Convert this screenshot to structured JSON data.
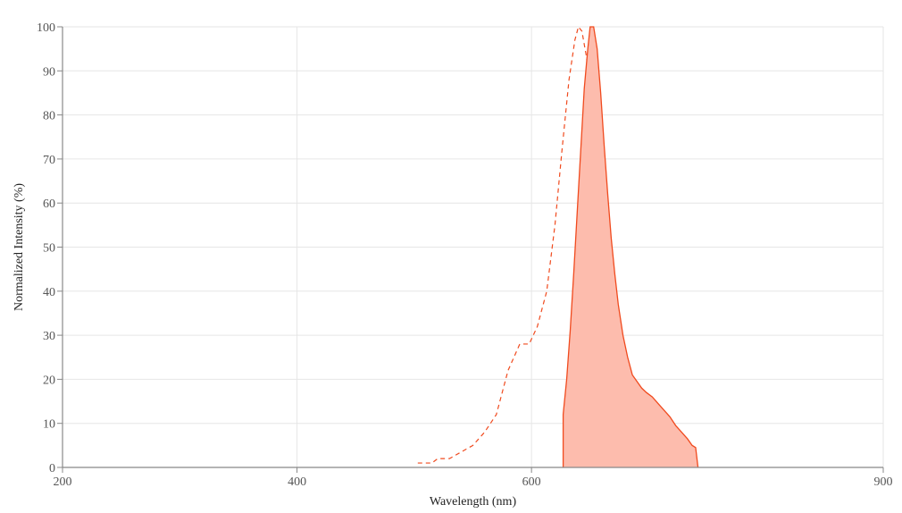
{
  "chart_data": {
    "type": "area",
    "title": "",
    "xlabel": "Wavelength (nm)",
    "ylabel": "Normalized Intensity (%)",
    "xlim": [
      200,
      900
    ],
    "ylim": [
      0,
      100
    ],
    "x_ticks": [
      200,
      400,
      600,
      900
    ],
    "y_ticks": [
      0,
      10,
      20,
      30,
      40,
      50,
      60,
      70,
      80,
      90,
      100
    ],
    "grid": true,
    "colors": {
      "line": "#f04a1e",
      "fill": "#fdbcad",
      "grid": "#e6e6e6",
      "axis": "#888888"
    },
    "series": [
      {
        "style": "dashed",
        "points": [
          [
            503,
            1
          ],
          [
            515,
            1
          ],
          [
            520,
            2
          ],
          [
            530,
            2
          ],
          [
            540,
            3.5
          ],
          [
            550,
            5
          ],
          [
            560,
            8
          ],
          [
            570,
            12
          ],
          [
            580,
            22
          ],
          [
            590,
            28
          ],
          [
            598,
            28
          ],
          [
            605,
            32
          ],
          [
            613,
            40
          ],
          [
            620,
            55
          ],
          [
            626,
            72
          ],
          [
            632,
            88
          ],
          [
            637,
            97
          ],
          [
            640,
            100
          ],
          [
            643,
            99
          ],
          [
            647,
            93
          ],
          [
            650,
            82
          ],
          [
            655,
            60
          ],
          [
            660,
            40
          ],
          [
            665,
            25
          ],
          [
            670,
            17
          ],
          [
            674,
            11
          ],
          [
            678,
            5
          ],
          [
            682,
            0
          ]
        ]
      },
      {
        "style": "solid-filled",
        "points": [
          [
            627,
            0
          ],
          [
            627,
            12
          ],
          [
            630,
            20
          ],
          [
            633,
            31
          ],
          [
            636,
            44
          ],
          [
            639,
            58
          ],
          [
            642,
            72
          ],
          [
            645,
            86
          ],
          [
            648,
            95
          ],
          [
            650,
            100
          ],
          [
            653,
            100
          ],
          [
            656,
            95
          ],
          [
            659,
            85
          ],
          [
            662,
            73
          ],
          [
            665,
            62
          ],
          [
            668,
            52
          ],
          [
            671,
            44
          ],
          [
            674,
            37
          ],
          [
            678,
            30
          ],
          [
            682,
            25
          ],
          [
            686,
            21
          ],
          [
            690,
            19.5
          ],
          [
            694,
            18
          ],
          [
            698,
            17
          ],
          [
            703,
            16
          ],
          [
            708,
            14.5
          ],
          [
            713,
            13
          ],
          [
            718,
            11.5
          ],
          [
            723,
            9.5
          ],
          [
            728,
            8
          ],
          [
            733,
            6.5
          ],
          [
            737,
            5
          ],
          [
            740,
            4.5
          ],
          [
            742,
            0
          ]
        ]
      }
    ]
  }
}
